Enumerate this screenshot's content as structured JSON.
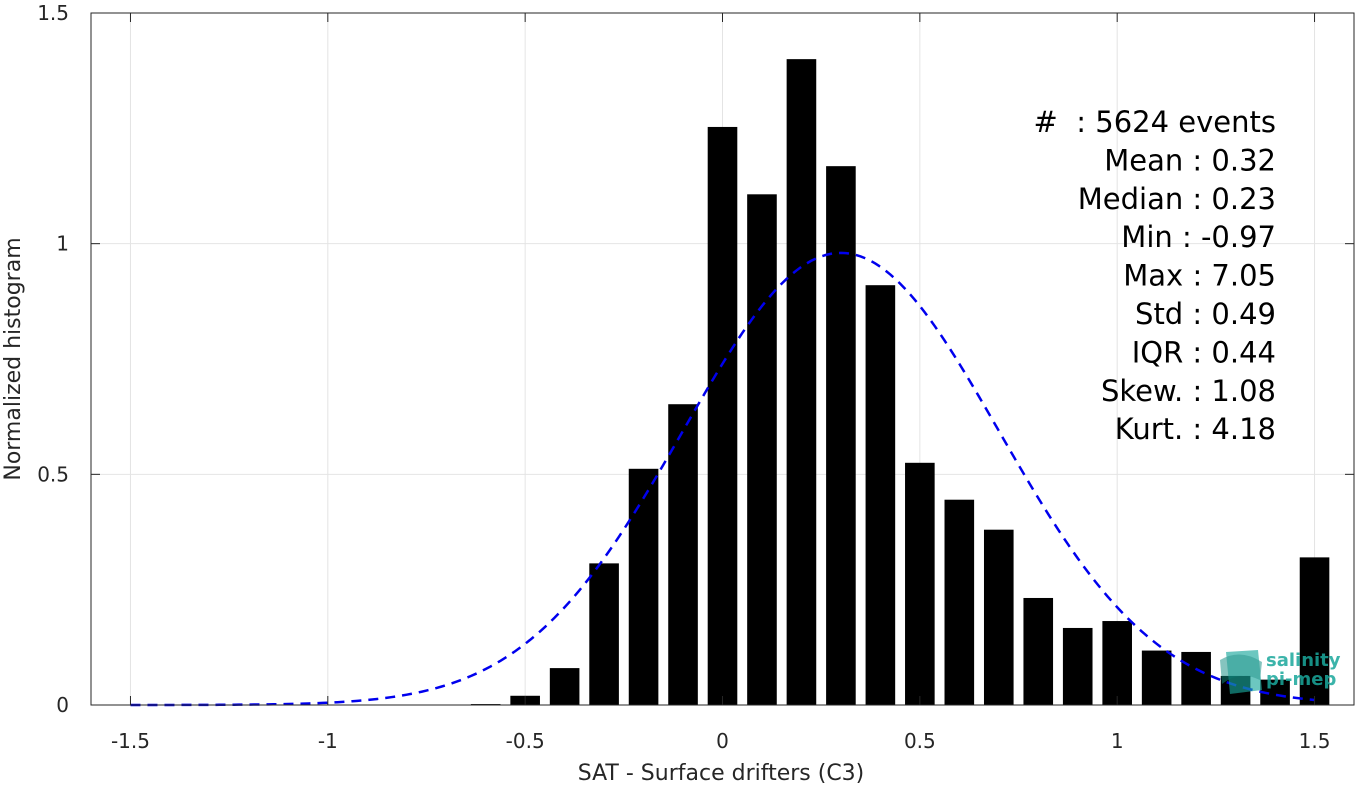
{
  "chart_data": {
    "type": "bar",
    "xlabel": "SAT - Surface drifters (C3)",
    "ylabel": "Normalized histogram",
    "xlim": [
      -1.6,
      1.6
    ],
    "ylim": [
      0,
      1.5
    ],
    "xticks": [
      -1.5,
      -1,
      -0.5,
      0,
      0.5,
      1,
      1.5
    ],
    "xtick_labels": [
      "-1.5",
      "-1",
      "-0.5",
      "0",
      "0.5",
      "1",
      "1.5"
    ],
    "yticks": [
      0,
      0.5,
      1,
      1.5
    ],
    "ytick_labels": [
      "0",
      "0.5",
      "1",
      "1.5"
    ],
    "grid": true,
    "bar_color": "#000000",
    "fit_color": "#0000ee",
    "bars": {
      "x": [
        -0.6,
        -0.5,
        -0.4,
        -0.3,
        -0.2,
        -0.1,
        0.0,
        0.1,
        0.2,
        0.3,
        0.4,
        0.5,
        0.6,
        0.7,
        0.8,
        0.9,
        1.0,
        1.1,
        1.2,
        1.3,
        1.4,
        1.5
      ],
      "values": [
        0.002,
        0.02,
        0.08,
        0.307,
        0.512,
        0.652,
        1.253,
        1.107,
        1.4,
        1.168,
        0.91,
        0.525,
        0.445,
        0.38,
        0.232,
        0.167,
        0.182,
        0.118,
        0.115,
        0.063,
        0.055,
        0.32
      ]
    },
    "fit_curve": {
      "style": "dashed",
      "mean": 0.3,
      "amplitude": 0.98,
      "sigma": 0.4,
      "x_range": [
        -1.5,
        1.5
      ]
    },
    "annotations": [
      "#  : 5624 events",
      "Mean : 0.32",
      "Median : 0.23",
      "Min : -0.97",
      "Max : 7.05",
      "Std : 0.49",
      "IQR : 0.44",
      "Skew. : 1.08",
      "Kurt. : 4.18"
    ],
    "logo": {
      "line1": "salinity",
      "line2": "pi-mep",
      "color": "#1aa79c"
    }
  }
}
